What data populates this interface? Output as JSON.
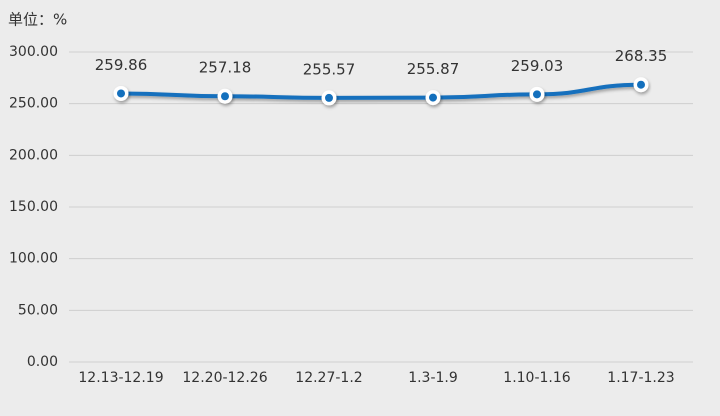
{
  "chart_data": {
    "type": "line",
    "unit_label": "单位：%",
    "categories": [
      "12.13-12.19",
      "12.20-12.26",
      "12.27-1.2",
      "1.3-1.9",
      "1.10-1.16",
      "1.17-1.23"
    ],
    "values": [
      259.86,
      257.18,
      255.57,
      255.87,
      259.03,
      268.35
    ],
    "color": "#1470bd",
    "ylim": [
      0,
      300
    ],
    "yticks": [
      {
        "value": 0,
        "label": "0.00"
      },
      {
        "value": 50,
        "label": "50.00"
      },
      {
        "value": 100,
        "label": "100.00"
      },
      {
        "value": 150,
        "label": "150.00"
      },
      {
        "value": 200,
        "label": "200.00"
      },
      {
        "value": 250,
        "label": "250.00"
      },
      {
        "value": 300,
        "label": "300.00"
      }
    ],
    "grid": true
  }
}
